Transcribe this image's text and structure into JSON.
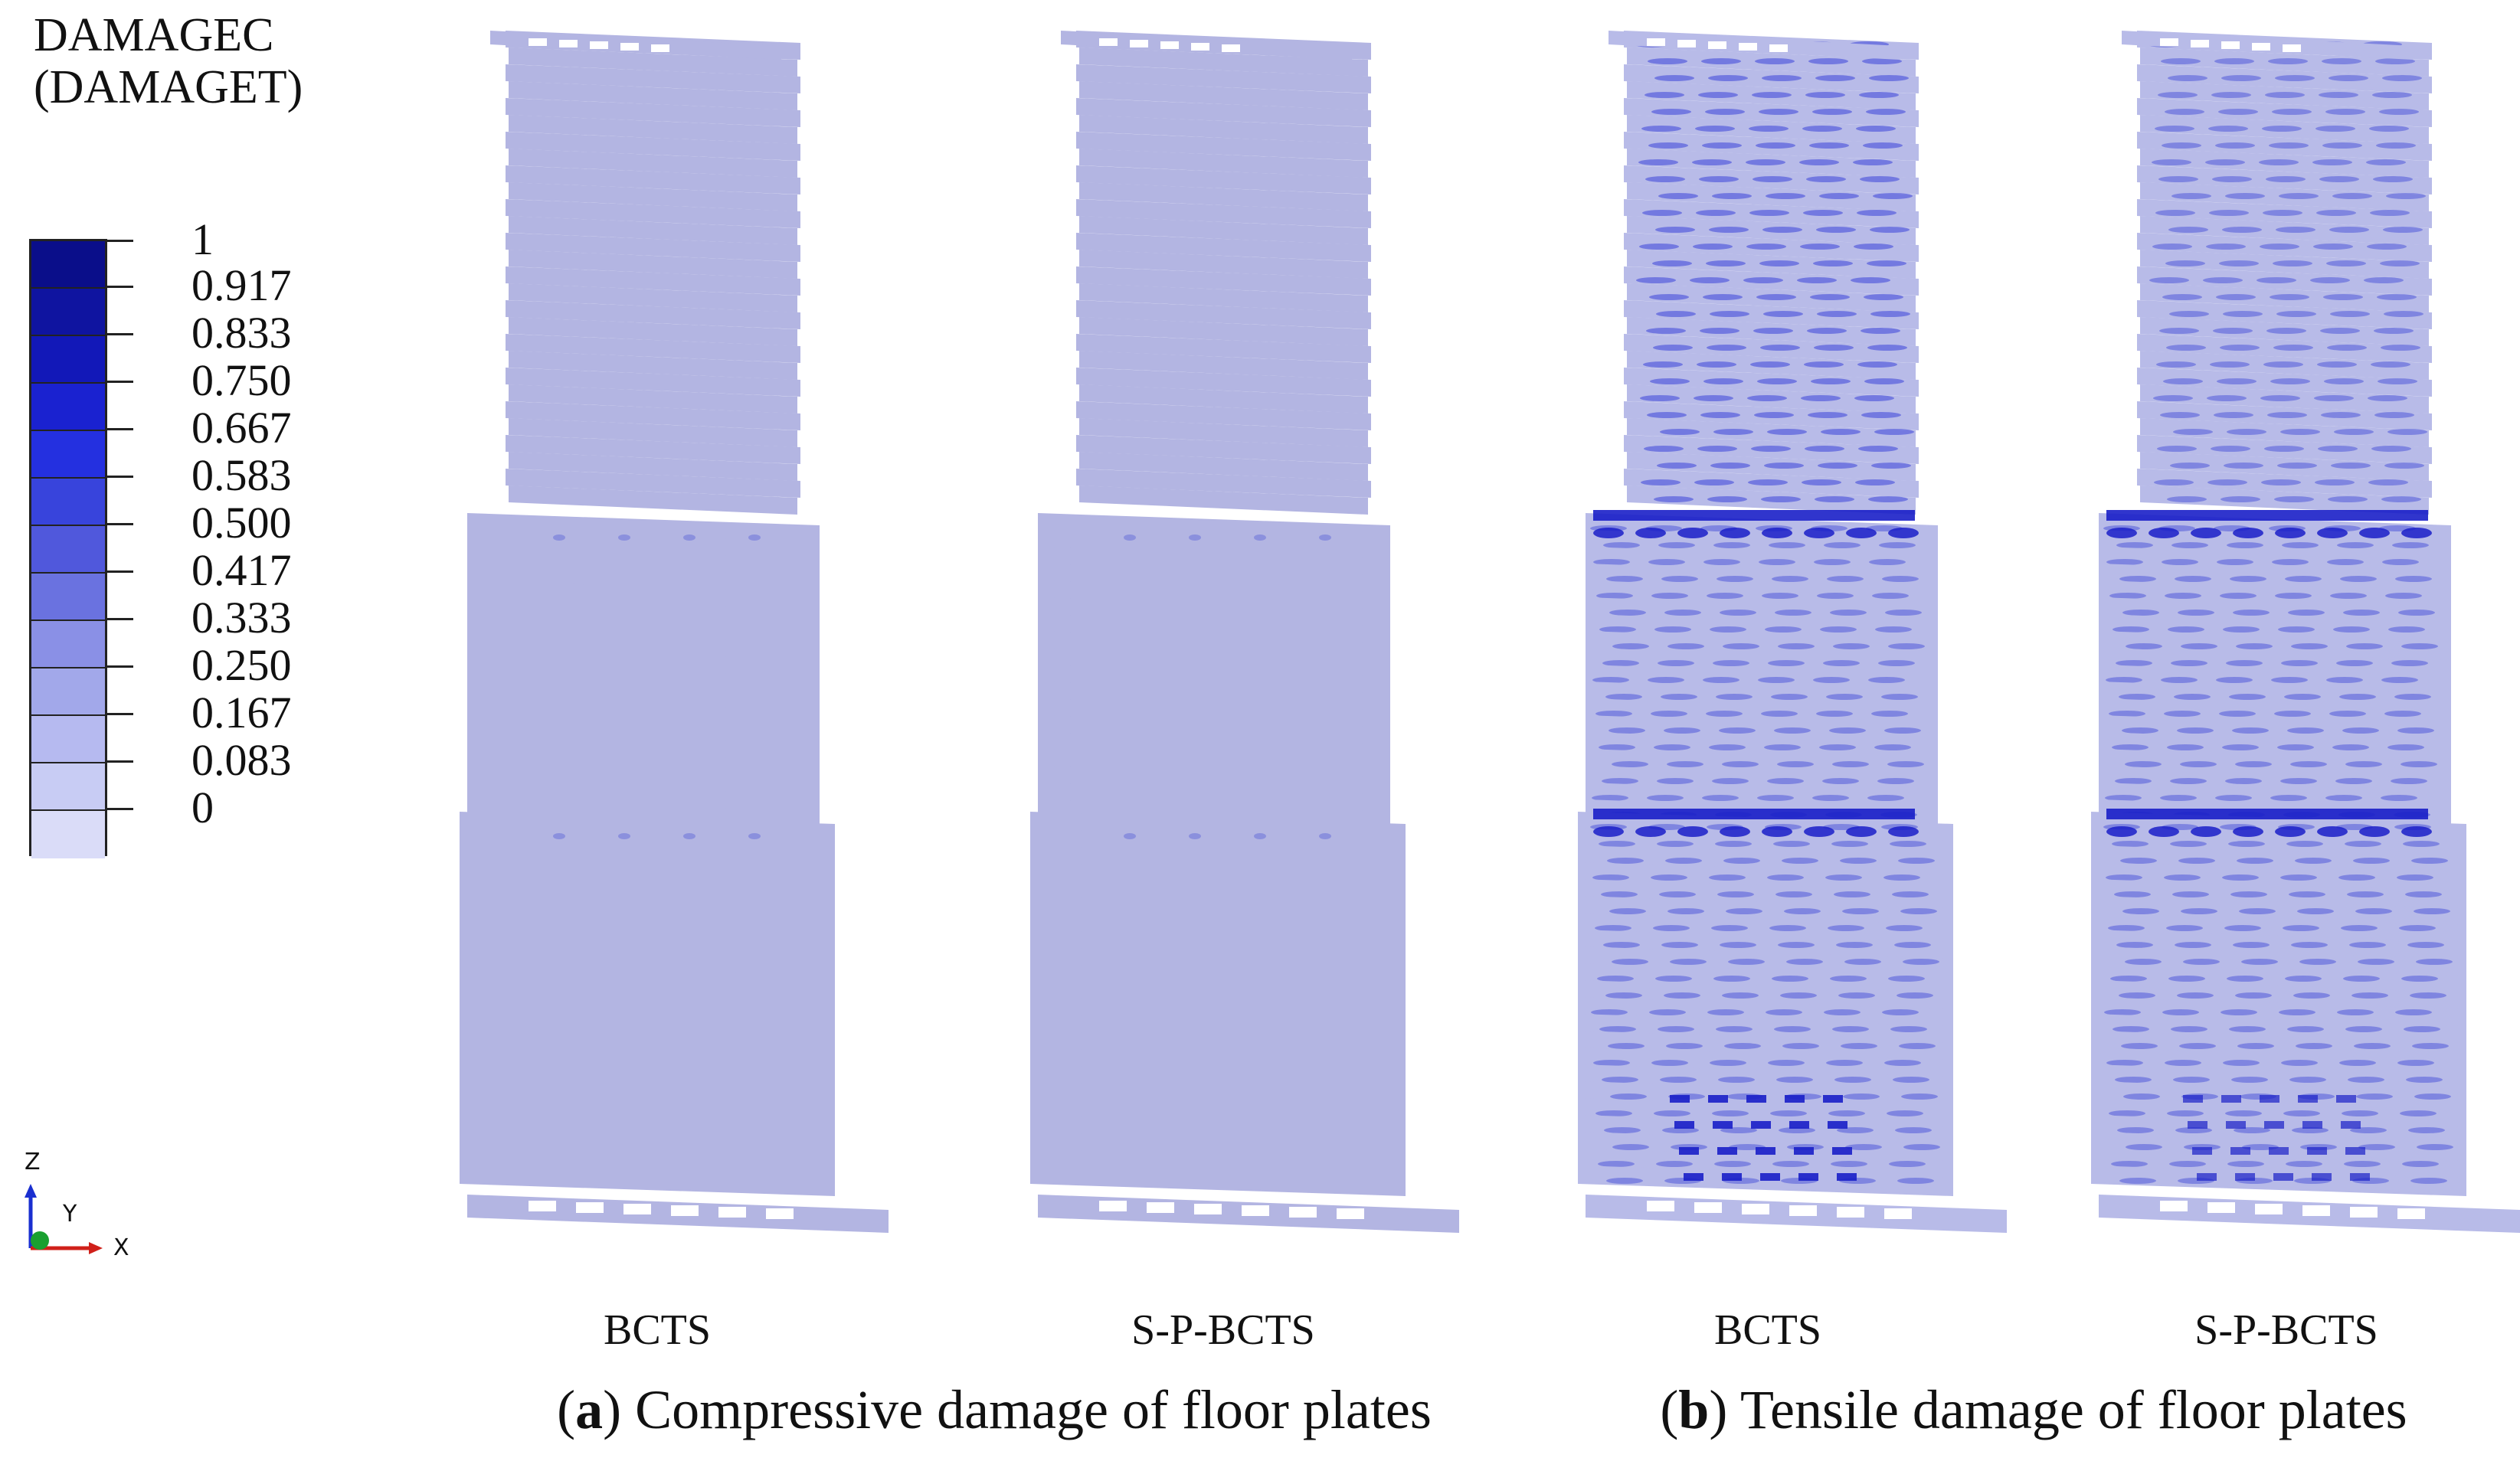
{
  "legend": {
    "title_line1": "DAMAGEC",
    "title_line2": "(DAMAGET)",
    "values": [
      "1",
      "0.917",
      "0.833",
      "0.750",
      "0.667",
      "0.583",
      "0.500",
      "0.417",
      "0.333",
      "0.250",
      "0.167",
      "0.083",
      "0"
    ],
    "colors": [
      "#0a0e8a",
      "#0f14a0",
      "#1218b8",
      "#1a22d0",
      "#2430e0",
      "#3844dc",
      "#5058dc",
      "#6a72e0",
      "#8a90e6",
      "#a2a8ea",
      "#b6baf0",
      "#c8ccf4",
      "#dadcf8"
    ]
  },
  "axes_triad": {
    "z": "Z",
    "y": "Y",
    "x": "X"
  },
  "panels": {
    "a": {
      "caption_letter": "a",
      "caption_text": "Compressive damage of floor plates",
      "models": [
        "BCTS",
        "S-P-BCTS"
      ],
      "plate_color": "#b3b5e2"
    },
    "b": {
      "caption_letter": "b",
      "caption_text": "Tensile damage of floor plates",
      "models": [
        "BCTS",
        "S-P-BCTS"
      ],
      "plate_color": "#b8bbe8"
    }
  }
}
